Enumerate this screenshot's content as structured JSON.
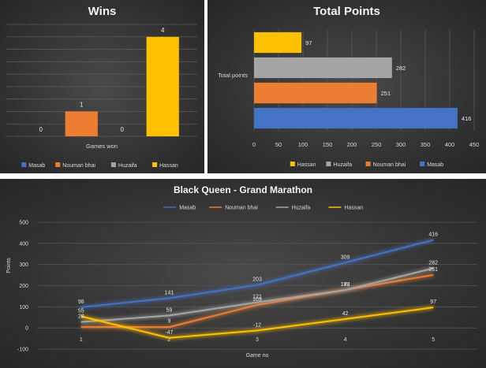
{
  "chart_data": [
    {
      "type": "bar",
      "title": "Wins",
      "categories": [
        "Games won"
      ],
      "series": [
        {
          "name": "Masab",
          "values": [
            0
          ],
          "color": "#4472c4"
        },
        {
          "name": "Nouman bhai",
          "values": [
            1
          ],
          "color": "#ed7d31"
        },
        {
          "name": "Huzaifa",
          "values": [
            0
          ],
          "color": "#a5a5a5"
        },
        {
          "name": "Hassan",
          "values": [
            4
          ],
          "color": "#ffc000"
        }
      ],
      "ylim": [
        0,
        4.5
      ],
      "grid": true,
      "legend": "bottom"
    },
    {
      "type": "bar",
      "orientation": "horizontal",
      "title": "Total Points",
      "categories": [
        "Total points"
      ],
      "series": [
        {
          "name": "Hassan",
          "values": [
            97
          ],
          "color": "#ffc000"
        },
        {
          "name": "Huzaifa",
          "values": [
            282
          ],
          "color": "#a5a5a5"
        },
        {
          "name": "Nouman bhai",
          "values": [
            251
          ],
          "color": "#ed7d31"
        },
        {
          "name": "Masab",
          "values": [
            416
          ],
          "color": "#4472c4"
        }
      ],
      "xlim": [
        0,
        450
      ],
      "xticks": [
        "0",
        "50",
        "100",
        "150",
        "200",
        "250",
        "300",
        "350",
        "400",
        "450"
      ],
      "grid": true,
      "legend": "bottom"
    },
    {
      "type": "line",
      "title": "Black Queen - Grand Marathon",
      "xlabel": "Game no",
      "ylabel": "Points",
      "x": [
        1,
        2,
        3,
        4,
        5
      ],
      "series": [
        {
          "name": "Masab",
          "values": [
            98,
            141,
            203,
            309,
            416
          ],
          "color": "#4472c4"
        },
        {
          "name": "Nouman bhai",
          "values": [
            5,
            4,
            109,
            180,
            251
          ],
          "color": "#ed7d31"
        },
        {
          "name": "Huzaifa",
          "values": [
            28,
            59,
            121,
            179,
            282
          ],
          "color": "#a5a5a5"
        },
        {
          "name": "Hassan",
          "values": [
            55,
            -47,
            -12,
            42,
            97
          ],
          "color": "#ffc000"
        }
      ],
      "data_labels": [
        {
          "series": "Masab",
          "labels": [
            "98",
            "141",
            "203",
            "309",
            "416"
          ]
        },
        {
          "series": "Nouman bhai",
          "labels": [
            "",
            "",
            "109",
            "180",
            "251"
          ]
        },
        {
          "series": "Huzaifa",
          "labels": [
            "28",
            "59",
            "121",
            "179",
            "282"
          ]
        },
        {
          "series": "Hassan",
          "labels": [
            "55",
            "-47",
            "-12",
            "42",
            "97"
          ]
        }
      ],
      "extra_labels": [
        "9"
      ],
      "ylim": [
        -100,
        500
      ],
      "yticks": [
        "-100",
        "0",
        "100",
        "200",
        "300",
        "400",
        "500"
      ],
      "xticks": [
        "1",
        "2",
        "3",
        "4",
        "5"
      ],
      "grid": true,
      "legend": "top"
    }
  ]
}
